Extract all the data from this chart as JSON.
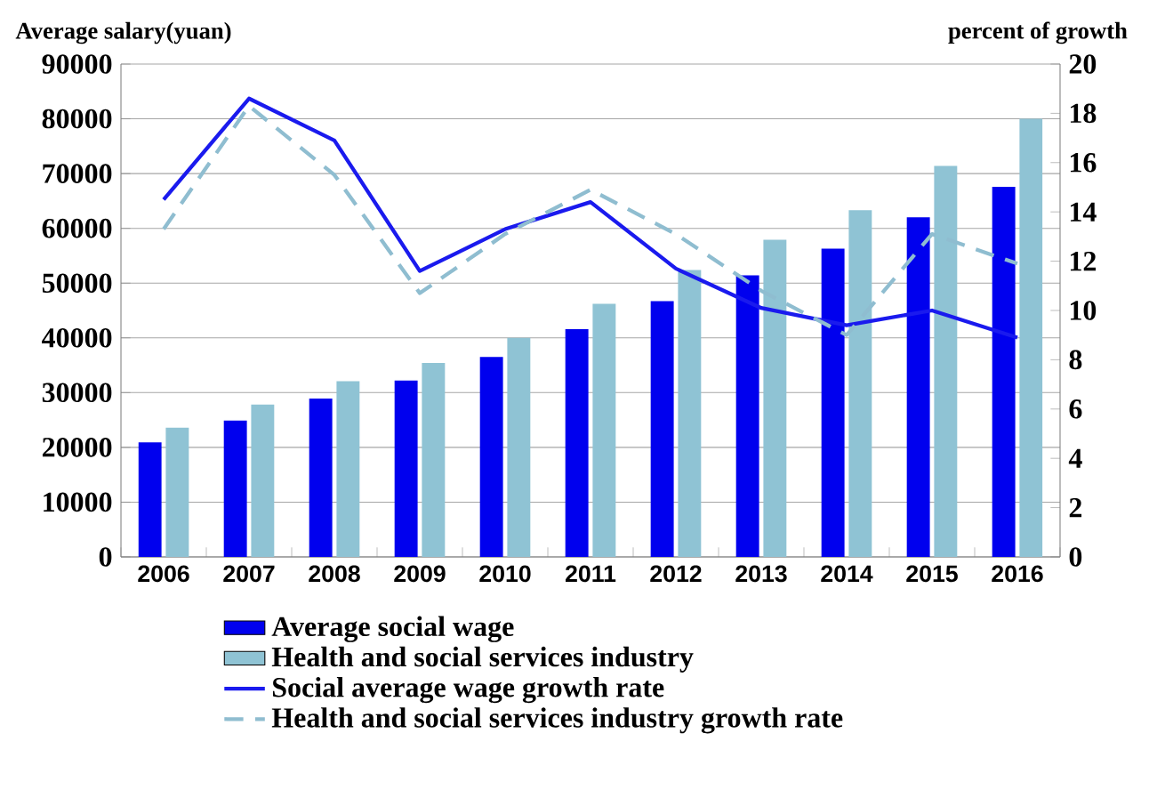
{
  "chart_data": {
    "type": "bar",
    "ylabel": "Average salary(yuan)",
    "y2label": "percent of growth",
    "categories": [
      "2006",
      "2007",
      "2008",
      "2009",
      "2010",
      "2011",
      "2012",
      "2013",
      "2014",
      "2015",
      "2016"
    ],
    "series": [
      {
        "name": "Average social wage",
        "color": "#0000ee",
        "values": [
          20900,
          24900,
          28900,
          32200,
          36500,
          41600,
          46700,
          51400,
          56300,
          62000,
          67600
        ]
      },
      {
        "name": "Health and social services industry",
        "color": "#8fc3d4",
        "values": [
          23600,
          27800,
          32100,
          35400,
          40000,
          46200,
          52400,
          57900,
          63300,
          71400,
          80000
        ]
      },
      {
        "name": "Social average wage growth rate",
        "type": "line",
        "axis": "y2",
        "line_style": "solid",
        "color": "#1a1aee",
        "values": [
          14.5,
          18.6,
          16.9,
          11.6,
          13.3,
          14.4,
          11.7,
          10.1,
          9.4,
          10.0,
          8.9
        ]
      },
      {
        "name": "Health and social services industry growth rate",
        "type": "line",
        "axis": "y2",
        "line_style": "dashed",
        "color": "#8fbdd0",
        "values": [
          13.3,
          18.3,
          15.5,
          10.7,
          13.1,
          14.9,
          13.1,
          10.8,
          9.0,
          13.1,
          11.9
        ]
      }
    ],
    "ylim": [
      0,
      90000
    ],
    "yticks": [
      0,
      10000,
      20000,
      30000,
      40000,
      50000,
      60000,
      70000,
      80000,
      90000
    ],
    "y2lim": [
      0,
      20
    ],
    "y2ticks": [
      0,
      2,
      4,
      6,
      8,
      10,
      12,
      14,
      16,
      18,
      20
    ],
    "grid": "y",
    "legend": "bottom",
    "marker": "none"
  }
}
